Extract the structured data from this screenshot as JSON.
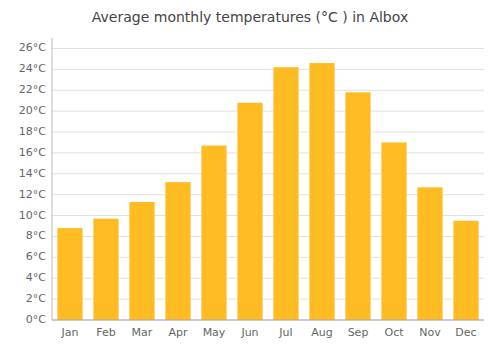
{
  "chart_data": {
    "type": "bar",
    "title": "Average monthly temperatures (°C ) in Albox",
    "categories": [
      "Jan",
      "Feb",
      "Mar",
      "Apr",
      "May",
      "Jun",
      "Jul",
      "Aug",
      "Sep",
      "Oct",
      "Nov",
      "Dec"
    ],
    "values": [
      8.8,
      9.7,
      11.3,
      13.2,
      16.7,
      20.8,
      24.2,
      24.6,
      21.8,
      17.0,
      12.7,
      9.5
    ],
    "color": "#FFBB22",
    "ylim": [
      0,
      27
    ],
    "yticks": [
      {
        "value": 0,
        "label": "0°C"
      },
      {
        "value": 2,
        "label": "2°C"
      },
      {
        "value": 4,
        "label": "4°C"
      },
      {
        "value": 6,
        "label": "6°C"
      },
      {
        "value": 8,
        "label": "8°C"
      },
      {
        "value": 10,
        "label": "10°C"
      },
      {
        "value": 12,
        "label": "12°C"
      },
      {
        "value": 14,
        "label": "14°C"
      },
      {
        "value": 16,
        "label": "16°C"
      },
      {
        "value": 18,
        "label": "18°C"
      },
      {
        "value": 20,
        "label": "20°C"
      },
      {
        "value": 22,
        "label": "22°C"
      },
      {
        "value": 24,
        "label": "24°C"
      },
      {
        "value": 26,
        "label": "26°C"
      }
    ],
    "grid": true
  }
}
